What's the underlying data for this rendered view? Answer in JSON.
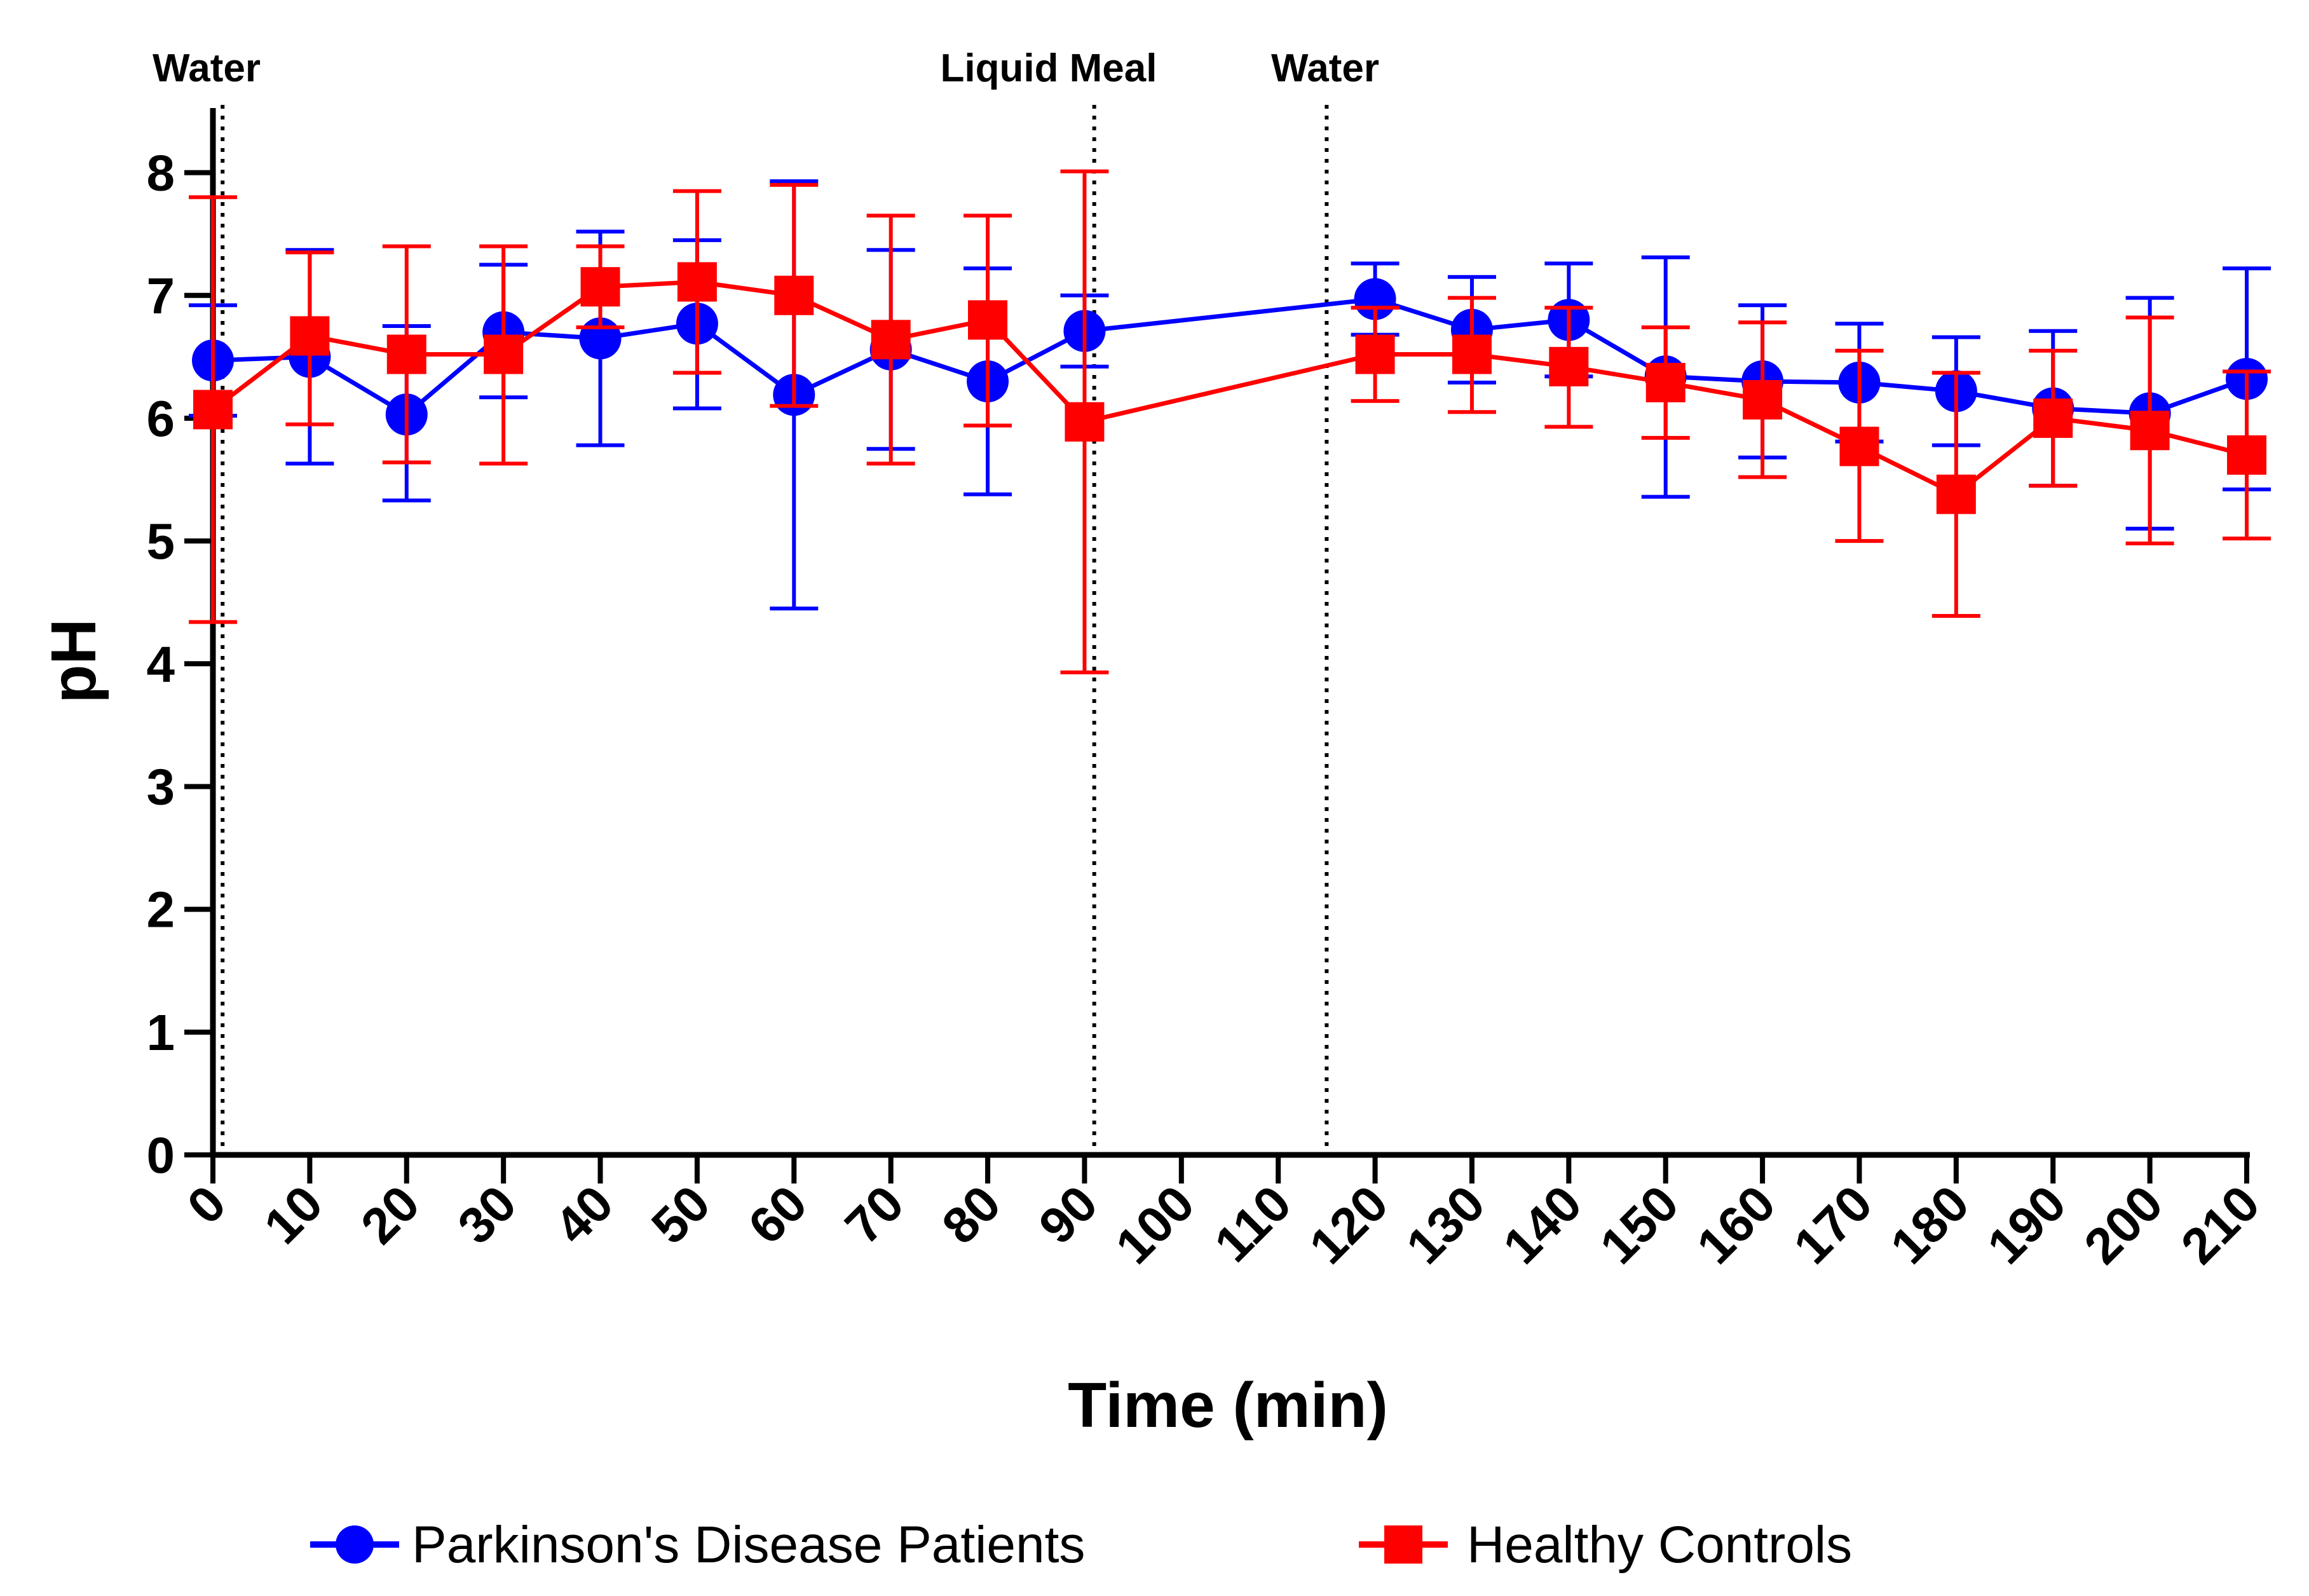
{
  "chart_data": {
    "type": "line",
    "title": "",
    "xlabel": "Time (min)",
    "ylabel": "pH",
    "xlim": [
      0,
      210
    ],
    "ylim": [
      0,
      8.5
    ],
    "x_ticks": [
      0,
      10,
      20,
      30,
      40,
      50,
      60,
      70,
      80,
      90,
      100,
      110,
      120,
      130,
      140,
      150,
      160,
      170,
      180,
      190,
      200,
      210
    ],
    "y_ticks": [
      0,
      1,
      2,
      3,
      4,
      5,
      6,
      7,
      8
    ],
    "grid": false,
    "legend_position": "bottom",
    "events": [
      {
        "x": 1,
        "label": "Water"
      },
      {
        "x": 91,
        "label": "Liquid Meal"
      },
      {
        "x": 115,
        "label": "Water"
      }
    ],
    "series": [
      {
        "name": "Parkinson's Disease Patients",
        "color": "#0000ff",
        "marker": "circle",
        "x": [
          0,
          10,
          20,
          30,
          40,
          50,
          60,
          70,
          80,
          90,
          120,
          130,
          140,
          150,
          160,
          170,
          180,
          190,
          200,
          210
        ],
        "y": [
          6.47,
          6.5,
          6.03,
          6.7,
          6.65,
          6.77,
          6.19,
          6.56,
          6.3,
          6.71,
          6.97,
          6.72,
          6.8,
          6.34,
          6.3,
          6.29,
          6.22,
          6.08,
          6.04,
          6.32
        ],
        "upper": [
          6.92,
          7.37,
          6.75,
          7.25,
          7.52,
          7.45,
          7.93,
          7.37,
          7.22,
          7.0,
          7.26,
          7.15,
          7.26,
          7.31,
          6.92,
          6.77,
          6.66,
          6.71,
          6.98,
          7.22
        ],
        "lower": [
          6.02,
          5.63,
          5.33,
          6.17,
          5.78,
          6.08,
          4.45,
          5.75,
          5.38,
          6.42,
          6.68,
          6.29,
          6.34,
          5.36,
          5.68,
          5.81,
          5.78,
          5.45,
          5.1,
          5.42
        ]
      },
      {
        "name": "Healthy Controls",
        "color": "#ff0000",
        "marker": "square",
        "x": [
          0,
          10,
          20,
          30,
          40,
          50,
          60,
          70,
          80,
          90,
          120,
          130,
          140,
          150,
          160,
          170,
          180,
          190,
          200,
          210
        ],
        "y": [
          6.07,
          6.67,
          6.52,
          6.52,
          7.07,
          7.11,
          7.0,
          6.64,
          6.8,
          5.97,
          6.52,
          6.52,
          6.42,
          6.29,
          6.15,
          5.77,
          5.38,
          6.0,
          5.9,
          5.7
        ],
        "upper": [
          7.8,
          7.35,
          7.4,
          7.4,
          7.4,
          7.85,
          7.9,
          7.65,
          7.65,
          8.01,
          6.9,
          6.98,
          6.9,
          6.74,
          6.78,
          6.55,
          6.37,
          6.55,
          6.82,
          6.38
        ],
        "lower": [
          4.34,
          5.95,
          5.64,
          5.63,
          6.74,
          6.37,
          6.1,
          5.63,
          5.94,
          3.93,
          6.14,
          6.05,
          5.93,
          5.84,
          5.52,
          5.0,
          4.39,
          5.45,
          4.98,
          5.02
        ]
      }
    ]
  }
}
